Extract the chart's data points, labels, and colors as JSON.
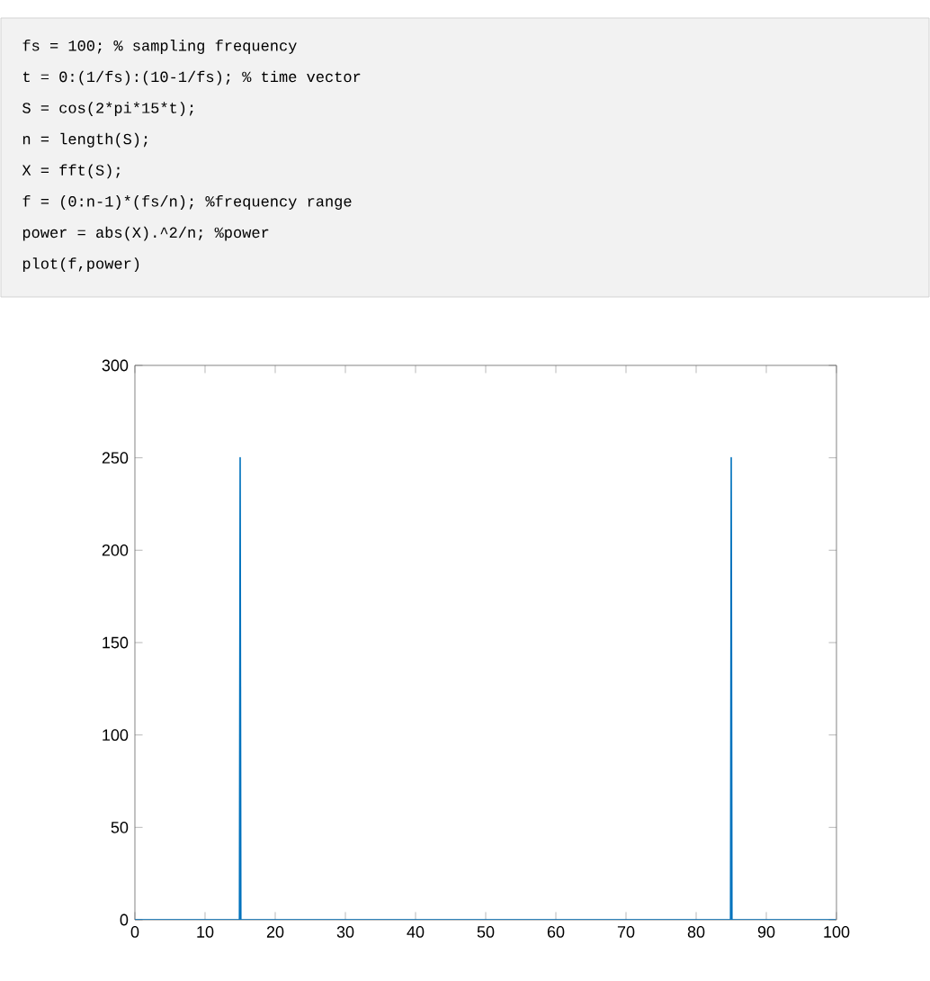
{
  "chart_data": {
    "type": "line",
    "annotations": [
      "fs = 100;              % sampling frequency",
      "t = 0:(1/fs):(10-1/fs); % time vector",
      "S = cos(2*pi*15*t);",
      "n = length(S);",
      "X = fft(S);",
      "f = (0:n-1)*(fs/n);     %frequency range",
      "power = abs(X).^2/n;    %power",
      "plot(f,power)"
    ],
    "series": [
      {
        "color": "#0072bd",
        "x": [
          0,
          14.9,
          15,
          15.1,
          84.9,
          85,
          85.1,
          99.9
        ],
        "values": [
          0,
          0,
          250,
          0,
          0,
          250,
          0,
          0
        ]
      }
    ],
    "xlim": [
      0,
      100
    ],
    "ylim": [
      0,
      300
    ],
    "xticks": [
      0,
      10,
      20,
      30,
      40,
      50,
      60,
      70,
      80,
      90,
      100
    ],
    "yticks": [
      0,
      50,
      100,
      150,
      200,
      250,
      300
    ],
    "grid": false
  }
}
